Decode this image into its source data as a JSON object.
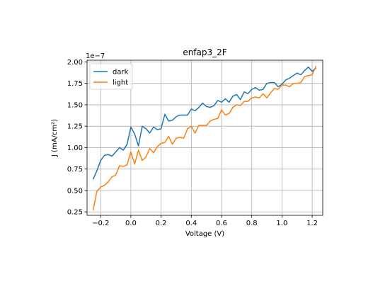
{
  "chart_data": {
    "type": "line",
    "title": "enfap3_2F",
    "xlabel": "Voltage (V)",
    "ylabel": "J (mA/cm²)",
    "y_offset_label": "1e−7",
    "xlim": [
      -0.29,
      1.27
    ],
    "ylim": [
      0.21,
      2.02
    ],
    "y_scale_factor": 1e-07,
    "grid": true,
    "legend_position": "upper-left",
    "x_ticks": [
      {
        "value": -0.2,
        "label": "−0.2"
      },
      {
        "value": 0.0,
        "label": "0.0"
      },
      {
        "value": 0.2,
        "label": "0.2"
      },
      {
        "value": 0.4,
        "label": "0.4"
      },
      {
        "value": 0.6,
        "label": "0.6"
      },
      {
        "value": 0.8,
        "label": "0.8"
      },
      {
        "value": 1.0,
        "label": "1.0"
      },
      {
        "value": 1.2,
        "label": "1.2"
      }
    ],
    "y_ticks": [
      {
        "value": 0.25,
        "label": "0.25"
      },
      {
        "value": 0.5,
        "label": "0.50"
      },
      {
        "value": 0.75,
        "label": "0.75"
      },
      {
        "value": 1.0,
        "label": "1.00"
      },
      {
        "value": 1.25,
        "label": "1.25"
      },
      {
        "value": 1.5,
        "label": "1.50"
      },
      {
        "value": 1.75,
        "label": "1.75"
      },
      {
        "value": 2.0,
        "label": "2.00"
      }
    ],
    "series": [
      {
        "name": "dark",
        "color": "#1f77b4",
        "x": [
          -0.25,
          -0.225,
          -0.2,
          -0.175,
          -0.15,
          -0.125,
          -0.1,
          -0.075,
          -0.05,
          -0.025,
          0.0,
          0.025,
          0.05,
          0.075,
          0.1,
          0.125,
          0.15,
          0.175,
          0.2,
          0.225,
          0.25,
          0.275,
          0.3,
          0.325,
          0.35,
          0.375,
          0.4,
          0.425,
          0.45,
          0.475,
          0.5,
          0.525,
          0.55,
          0.575,
          0.6,
          0.625,
          0.65,
          0.675,
          0.7,
          0.725,
          0.75,
          0.775,
          0.8,
          0.825,
          0.85,
          0.875,
          0.9,
          0.925,
          0.95,
          0.975,
          1.0,
          1.025,
          1.05,
          1.075,
          1.1,
          1.125,
          1.15,
          1.175,
          1.2,
          1.225
        ],
        "values": [
          0.63,
          0.73,
          0.85,
          0.91,
          0.92,
          0.9,
          0.95,
          1.0,
          0.97,
          1.04,
          1.24,
          1.16,
          1.02,
          1.25,
          1.22,
          1.17,
          1.24,
          1.21,
          1.22,
          1.39,
          1.31,
          1.32,
          1.36,
          1.38,
          1.38,
          1.38,
          1.45,
          1.43,
          1.47,
          1.52,
          1.48,
          1.47,
          1.49,
          1.55,
          1.53,
          1.57,
          1.53,
          1.6,
          1.62,
          1.56,
          1.65,
          1.63,
          1.68,
          1.7,
          1.67,
          1.68,
          1.75,
          1.76,
          1.76,
          1.71,
          1.74,
          1.79,
          1.81,
          1.84,
          1.87,
          1.85,
          1.9,
          1.94,
          1.89,
          1.93
        ]
      },
      {
        "name": "light",
        "color": "#ff7f0e",
        "x": [
          -0.25,
          -0.225,
          -0.2,
          -0.175,
          -0.15,
          -0.125,
          -0.1,
          -0.075,
          -0.05,
          -0.025,
          0.0,
          0.025,
          0.05,
          0.075,
          0.1,
          0.125,
          0.15,
          0.175,
          0.2,
          0.225,
          0.25,
          0.275,
          0.3,
          0.325,
          0.35,
          0.375,
          0.4,
          0.425,
          0.45,
          0.475,
          0.5,
          0.525,
          0.55,
          0.575,
          0.6,
          0.625,
          0.65,
          0.675,
          0.7,
          0.725,
          0.75,
          0.775,
          0.8,
          0.825,
          0.85,
          0.875,
          0.9,
          0.925,
          0.95,
          0.975,
          1.0,
          1.025,
          1.05,
          1.075,
          1.1,
          1.125,
          1.15,
          1.175,
          1.2,
          1.225
        ],
        "values": [
          0.27,
          0.49,
          0.54,
          0.56,
          0.6,
          0.66,
          0.68,
          0.79,
          0.78,
          0.8,
          0.95,
          0.81,
          0.97,
          0.85,
          0.89,
          0.99,
          0.94,
          1.01,
          1.05,
          1.06,
          1.13,
          1.04,
          1.11,
          1.12,
          1.11,
          1.22,
          1.25,
          1.17,
          1.26,
          1.26,
          1.26,
          1.31,
          1.33,
          1.34,
          1.44,
          1.38,
          1.4,
          1.47,
          1.5,
          1.49,
          1.54,
          1.54,
          1.58,
          1.59,
          1.58,
          1.63,
          1.58,
          1.64,
          1.69,
          1.68,
          1.73,
          1.73,
          1.71,
          1.75,
          1.75,
          1.76,
          1.83,
          1.84,
          1.85,
          1.95
        ]
      }
    ]
  }
}
